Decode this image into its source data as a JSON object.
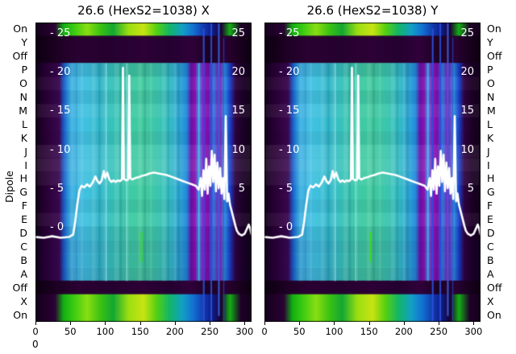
{
  "panels": [
    {
      "title": "26.6 (HexS2=1038) X"
    },
    {
      "title": "26.6 (HexS2=1038) Y"
    }
  ],
  "axis": {
    "dipole_label": "Dipole",
    "row_labels": [
      "On",
      "Y",
      "Off",
      "P",
      "O",
      "N",
      "M",
      "L",
      "K",
      "J",
      "I",
      "H",
      "G",
      "F",
      "E",
      "D",
      "C",
      "B",
      "A",
      "Off",
      "X",
      "On"
    ],
    "x_ticks": [
      "0",
      "50",
      "100",
      "150",
      "200",
      "250",
      "300"
    ],
    "x_tick_values": [
      0,
      50,
      100,
      150,
      200,
      250,
      300
    ],
    "inner_left_ticks": [
      "- 25",
      "- 20",
      "- 15",
      "- 10",
      "- 5",
      "- 0"
    ],
    "inner_right_ticks": [
      "25",
      "20",
      "15",
      "10",
      "5"
    ],
    "inner_tick_values": [
      25,
      20,
      15,
      10,
      5,
      0
    ],
    "stray_zero": "0"
  },
  "chart_data": {
    "type": "heatmap",
    "title_left": "26.6 (HexS2=1038) X",
    "title_right": "26.6 (HexS2=1038) Y",
    "x_range": [
      0,
      310
    ],
    "value_axis_range": [
      0,
      25
    ],
    "y_scale": {
      "v0_fr": 0.6855,
      "per_unit_fr": 0.025914
    },
    "row_types": [
      "spectral",
      "dark",
      "dark",
      "body",
      "body",
      "body",
      "body",
      "body",
      "body",
      "body",
      "body",
      "body",
      "body",
      "body",
      "body",
      "body",
      "body",
      "body",
      "body",
      "dark",
      "spectral",
      "spectral"
    ],
    "row_tints": [
      "",
      "",
      "",
      "rgba(10,0,40,0.10)",
      "rgba(255,255,255,0.04)",
      "rgba(10,0,40,0.06)",
      "rgba(255,255,255,0.06)",
      "",
      "rgba(10,0,40,0.05)",
      "rgba(255,255,255,0.08)",
      "rgba(255,255,255,0.10)",
      "rgba(255,255,255,0.06)",
      "",
      "rgba(10,0,40,0.05)",
      "rgba(255,255,255,0.05)",
      "rgba(10,0,40,0.08)",
      "rgba(20,0,60,0.12)",
      "rgba(20,0,60,0.10)",
      "rgba(20,0,60,0.14)",
      "",
      "",
      ""
    ],
    "gradients": {
      "spectral": [
        [
          0,
          "#15001c"
        ],
        [
          0.09,
          "#2b0134"
        ],
        [
          0.13,
          "#12b012"
        ],
        [
          0.18,
          "#3ecc12"
        ],
        [
          0.24,
          "#8ade12"
        ],
        [
          0.3,
          "#3cc212"
        ],
        [
          0.36,
          "#12a832"
        ],
        [
          0.43,
          "#9bde12"
        ],
        [
          0.5,
          "#c8e412"
        ],
        [
          0.56,
          "#55d012"
        ],
        [
          0.62,
          "#12b668"
        ],
        [
          0.68,
          "#12a0c4"
        ],
        [
          0.73,
          "#1272d2"
        ],
        [
          0.78,
          "#1238ae"
        ],
        [
          0.82,
          "#0f1c86"
        ],
        [
          0.86,
          "#1c0132"
        ],
        [
          0.9,
          "#14b014"
        ],
        [
          0.95,
          "#1f0128"
        ],
        [
          1,
          "#15001c"
        ]
      ],
      "dark": [
        [
          0,
          "#0c0010"
        ],
        [
          0.1,
          "#1e0124"
        ],
        [
          0.2,
          "#2a0132"
        ],
        [
          0.35,
          "#250130"
        ],
        [
          0.5,
          "#2d0136"
        ],
        [
          0.62,
          "#240130"
        ],
        [
          0.72,
          "#30013a"
        ],
        [
          0.8,
          "#1c0124"
        ],
        [
          0.88,
          "#2a0132"
        ],
        [
          1,
          "#0c0010"
        ]
      ],
      "body": [
        [
          0,
          "#12001a"
        ],
        [
          0.05,
          "#2a0136"
        ],
        [
          0.11,
          "#3a0850"
        ],
        [
          0.13,
          "#1b58c8"
        ],
        [
          0.155,
          "#2ea0dc"
        ],
        [
          0.19,
          "#45bfe8"
        ],
        [
          0.24,
          "#3fc2de"
        ],
        [
          0.3,
          "#35bccc"
        ],
        [
          0.37,
          "#38c4b6"
        ],
        [
          0.44,
          "#3ecaa6"
        ],
        [
          0.5,
          "#42cc9e"
        ],
        [
          0.56,
          "#3cc6ac"
        ],
        [
          0.62,
          "#34bec4"
        ],
        [
          0.67,
          "#2ca8d8"
        ],
        [
          0.7,
          "#2288dc"
        ],
        [
          0.72,
          "#6a10a6"
        ],
        [
          0.74,
          "#8e12b4"
        ],
        [
          0.755,
          "#2f9ce2"
        ],
        [
          0.775,
          "#a012c2"
        ],
        [
          0.8,
          "#7a10ac"
        ],
        [
          0.825,
          "#2f7ee2"
        ],
        [
          0.85,
          "#8c10b2"
        ],
        [
          0.875,
          "#2a94e0"
        ],
        [
          0.9,
          "#1b3ecc"
        ],
        [
          0.925,
          "#2e0340"
        ],
        [
          0.96,
          "#1c0126"
        ],
        [
          1,
          "#12001a"
        ]
      ]
    },
    "texture": [
      {
        "fr": 0.16,
        "w": 0.015,
        "color": "rgba(255,255,255,0.10)",
        "y0": 0.136,
        "y1": 0.864
      },
      {
        "fr": 0.21,
        "w": 0.01,
        "color": "rgba(255,255,255,0.10)",
        "y0": 0.136,
        "y1": 0.864
      },
      {
        "fr": 0.26,
        "w": 0.018,
        "color": "rgba(255,255,255,0.10)",
        "y0": 0.136,
        "y1": 0.864
      },
      {
        "fr": 0.315,
        "w": 0.012,
        "color": "rgba(255,255,255,0.10)",
        "y0": 0.136,
        "y1": 0.864
      },
      {
        "fr": 0.365,
        "w": 0.02,
        "color": "rgba(255,255,255,0.10)",
        "y0": 0.136,
        "y1": 0.864
      },
      {
        "fr": 0.42,
        "w": 0.012,
        "color": "rgba(255,255,255,0.10)",
        "y0": 0.136,
        "y1": 0.864
      },
      {
        "fr": 0.475,
        "w": 0.016,
        "color": "rgba(255,255,255,0.10)",
        "y0": 0.136,
        "y1": 0.864
      },
      {
        "fr": 0.53,
        "w": 0.01,
        "color": "rgba(255,255,255,0.10)",
        "y0": 0.136,
        "y1": 0.864
      },
      {
        "fr": 0.585,
        "w": 0.018,
        "color": "rgba(255,255,255,0.10)",
        "y0": 0.136,
        "y1": 0.864
      },
      {
        "fr": 0.64,
        "w": 0.012,
        "color": "rgba(255,255,255,0.10)",
        "y0": 0.136,
        "y1": 0.864
      },
      {
        "fr": 0.185,
        "w": 0.01,
        "color": "rgba(0,0,60,0.10)",
        "y0": 0.136,
        "y1": 0.864
      },
      {
        "fr": 0.29,
        "w": 0.012,
        "color": "rgba(0,0,60,0.10)",
        "y0": 0.136,
        "y1": 0.864
      },
      {
        "fr": 0.39,
        "w": 0.01,
        "color": "rgba(0,0,60,0.10)",
        "y0": 0.136,
        "y1": 0.864
      },
      {
        "fr": 0.5,
        "w": 0.012,
        "color": "rgba(0,0,60,0.10)",
        "y0": 0.136,
        "y1": 0.864
      },
      {
        "fr": 0.61,
        "w": 0.01,
        "color": "rgba(0,0,60,0.10)",
        "y0": 0.136,
        "y1": 0.864
      },
      {
        "fr": 0.655,
        "w": 0.014,
        "color": "rgba(0,0,60,0.10)",
        "y0": 0.136,
        "y1": 0.864
      }
    ],
    "vlines": [
      {
        "fr": 0.326,
        "w": 1,
        "color": "#b8f0ff",
        "alpha": 0.8,
        "y0": 0.136,
        "y1": 0.864
      },
      {
        "fr": 0.42,
        "w": 1,
        "color": "#c8f6ff",
        "alpha": 0.6,
        "y0": 0.136,
        "y1": 0.864
      },
      {
        "fr": 0.487,
        "w": 2,
        "color": "#35e012",
        "alpha": 0.9,
        "y0": 0.7,
        "y1": 0.8
      },
      {
        "fr": 0.755,
        "w": 1,
        "color": "#66d8ff",
        "alpha": 0.7,
        "y0": 0.136,
        "y1": 0.864
      },
      {
        "fr": 0.775,
        "w": 2,
        "color": "#2b50d8",
        "alpha": 0.95,
        "y0": 0.02,
        "y1": 1
      },
      {
        "fr": 0.81,
        "w": 2,
        "color": "#2b50d8",
        "alpha": 0.9,
        "y0": 0,
        "y1": 1
      },
      {
        "fr": 0.845,
        "w": 2,
        "color": "#3a66e0",
        "alpha": 0.9,
        "y0": 0,
        "y1": 0.98
      },
      {
        "fr": 0.87,
        "w": 1,
        "color": "#2b50d8",
        "alpha": 0.8,
        "y0": 0.05,
        "y1": 1
      }
    ],
    "overlay_line": {
      "name": "white-profile-line",
      "color": "#ffffff",
      "points": [
        [
          0,
          -1.2
        ],
        [
          12,
          -1.3
        ],
        [
          24,
          -1.1
        ],
        [
          36,
          -1.3
        ],
        [
          48,
          -1.2
        ],
        [
          54,
          -0.9
        ],
        [
          57,
          0.8
        ],
        [
          60,
          3.0
        ],
        [
          63,
          4.8
        ],
        [
          66,
          5.4
        ],
        [
          70,
          5.2
        ],
        [
          74,
          5.6
        ],
        [
          78,
          5.3
        ],
        [
          82,
          5.8
        ],
        [
          86,
          6.6
        ],
        [
          89,
          6.0
        ],
        [
          92,
          5.7
        ],
        [
          95,
          6.1
        ],
        [
          98,
          7.3
        ],
        [
          100,
          6.4
        ],
        [
          103,
          7.1
        ],
        [
          106,
          6.2
        ],
        [
          109,
          5.9
        ],
        [
          112,
          6.1
        ],
        [
          115,
          5.9
        ],
        [
          118,
          6.1
        ],
        [
          121,
          6.0
        ],
        [
          124,
          6.2
        ],
        [
          125.5,
          20.6
        ],
        [
          127,
          6.3
        ],
        [
          130,
          6.1
        ],
        [
          133,
          6.2
        ],
        [
          134.5,
          19.6
        ],
        [
          136,
          6.4
        ],
        [
          139,
          6.2
        ],
        [
          143,
          6.4
        ],
        [
          148,
          6.5
        ],
        [
          153,
          6.7
        ],
        [
          158,
          6.8
        ],
        [
          164,
          7.0
        ],
        [
          170,
          7.1
        ],
        [
          176,
          7.0
        ],
        [
          182,
          6.9
        ],
        [
          188,
          6.8
        ],
        [
          194,
          6.6
        ],
        [
          200,
          6.4
        ],
        [
          206,
          6.2
        ],
        [
          212,
          6.0
        ],
        [
          218,
          5.8
        ],
        [
          224,
          5.6
        ],
        [
          230,
          5.4
        ],
        [
          234,
          4.9
        ],
        [
          237,
          6.4
        ],
        [
          239,
          4.1
        ],
        [
          241,
          7.4
        ],
        [
          243,
          4.9
        ],
        [
          245,
          8.9
        ],
        [
          247,
          4.4
        ],
        [
          249,
          7.9
        ],
        [
          251,
          5.4
        ],
        [
          253,
          9.9
        ],
        [
          255,
          5.9
        ],
        [
          257,
          9.4
        ],
        [
          259,
          4.7
        ],
        [
          261,
          8.4
        ],
        [
          263,
          5.1
        ],
        [
          265,
          7.7
        ],
        [
          267,
          4.4
        ],
        [
          269,
          6.4
        ],
        [
          271,
          3.7
        ],
        [
          273,
          14.4
        ],
        [
          275,
          3.4
        ],
        [
          277,
          4.4
        ],
        [
          279,
          3.0
        ],
        [
          281,
          2.3
        ],
        [
          283,
          1.6
        ],
        [
          285,
          0.9
        ],
        [
          287,
          0.2
        ],
        [
          289,
          -0.4
        ],
        [
          292,
          -0.8
        ],
        [
          296,
          -1.0
        ],
        [
          300,
          -0.8
        ],
        [
          303,
          -0.2
        ],
        [
          306,
          0.4
        ],
        [
          308,
          -0.1
        ],
        [
          310,
          -0.9
        ]
      ]
    }
  }
}
